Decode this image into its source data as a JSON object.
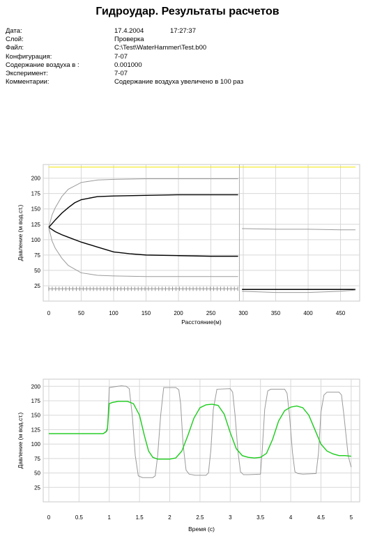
{
  "header": {
    "title": "Гидроудар. Результаты расчетов",
    "rows": [
      {
        "label": "Дата:",
        "value": "17.4.2004",
        "extra": "17:27:37"
      },
      {
        "label": "Слой:",
        "value": "Проверка"
      },
      {
        "label": "Файл:",
        "value": "C:\\Test\\WaterHammer\\Test.b00"
      },
      {
        "label": "Конфигурация:",
        "value": "7-07"
      },
      {
        "label": "Содержание воздуха в :",
        "value": "0.001000"
      },
      {
        "label": "Эксперимент:",
        "value": "7-07"
      },
      {
        "label": "Комментарии:",
        "value": "Содержание воздуха увеличено в 100 раз"
      }
    ]
  },
  "chart_data": [
    {
      "type": "line",
      "xlabel": "Расстояние(м)",
      "ylabel": "Давление (м вод.ст.)",
      "xlim": [
        0,
        450
      ],
      "ylim": [
        0,
        220
      ],
      "xticks": [
        0,
        50,
        100,
        150,
        200,
        250,
        300,
        350,
        400,
        450
      ],
      "yticks": [
        25,
        50,
        75,
        100,
        125,
        150,
        175,
        200
      ],
      "grid": true,
      "colors": {
        "yellow": "#f2e600",
        "black": "#000000",
        "gray": "#9a9a9a"
      },
      "series": [
        {
          "color": "yellow",
          "x": [
            0,
            473
          ],
          "y": [
            218,
            218
          ]
        },
        {
          "color": "gray",
          "x": [
            0,
            5,
            10,
            20,
            30,
            50,
            75,
            100,
            150,
            200,
            250,
            292
          ],
          "y": [
            120,
            140,
            152,
            170,
            182,
            193,
            197,
            198,
            199,
            199,
            199,
            199
          ]
        },
        {
          "color": "black",
          "x": [
            0,
            10,
            20,
            30,
            40,
            50,
            75,
            100,
            150,
            200,
            250,
            292
          ],
          "y": [
            120,
            132,
            143,
            152,
            160,
            165,
            170,
            171,
            172,
            173,
            173,
            173
          ]
        },
        {
          "color": "black",
          "x": [
            0,
            10,
            20,
            30,
            50,
            75,
            100,
            125,
            150,
            200,
            250,
            292
          ],
          "y": [
            120,
            113,
            108,
            104,
            96,
            88,
            80,
            77,
            75,
            74,
            73,
            73
          ]
        },
        {
          "color": "gray",
          "x": [
            0,
            5,
            10,
            20,
            30,
            50,
            75,
            100,
            150,
            200,
            250,
            292
          ],
          "y": [
            120,
            98,
            86,
            70,
            58,
            46,
            42,
            41,
            40,
            40,
            40,
            40
          ]
        },
        {
          "color": "gray",
          "x": [
            298,
            300,
            350,
            400,
            450,
            473
          ],
          "y": [
            118,
            118,
            117,
            117,
            116,
            116
          ]
        },
        {
          "color": "black",
          "x": [
            298,
            473
          ],
          "y": [
            19,
            19
          ]
        },
        {
          "color": "gray",
          "x": [
            298,
            350,
            400,
            450,
            473
          ],
          "y": [
            16,
            14,
            14,
            16,
            18
          ]
        },
        {
          "color": "gray",
          "x": [
            0,
            292
          ],
          "y": [
            20,
            20
          ]
        }
      ]
    },
    {
      "type": "line",
      "xlabel": "Время (с)",
      "ylabel": "Давление (м вод.ст.)",
      "xlim": [
        0,
        5
      ],
      "ylim": [
        0,
        210
      ],
      "xticks": [
        0,
        0.5,
        1,
        1.5,
        2,
        2.5,
        3,
        3.5,
        4,
        4.5,
        5
      ],
      "yticks": [
        25,
        50,
        75,
        100,
        125,
        150,
        175,
        200
      ],
      "grid": true,
      "colors": {
        "gray": "#9a9a9a",
        "green": "#19cc19"
      },
      "series": [
        {
          "color": "gray",
          "x": [
            0,
            0.9,
            0.95,
            0.97,
            1.0,
            1.2,
            1.28,
            1.33,
            1.38,
            1.43,
            1.48,
            1.55,
            1.72,
            1.76,
            1.8,
            1.85,
            1.9,
            2.1,
            2.15,
            2.18,
            2.22,
            2.27,
            2.32,
            2.42,
            2.6,
            2.64,
            2.68,
            2.72,
            2.78,
            3.0,
            3.04,
            3.08,
            3.13,
            3.17,
            3.22,
            3.3,
            3.5,
            3.53,
            3.57,
            3.62,
            3.67,
            3.9,
            3.94,
            3.98,
            4.03,
            4.07,
            4.12,
            4.2,
            4.42,
            4.46,
            4.5,
            4.55,
            4.6,
            4.8,
            4.84,
            4.88,
            4.95,
            5.0
          ],
          "y": [
            118,
            118,
            121,
            124,
            198,
            201,
            200,
            196,
            150,
            80,
            45,
            42,
            42,
            45,
            80,
            150,
            198,
            198,
            194,
            170,
            100,
            55,
            48,
            46,
            46,
            50,
            90,
            160,
            195,
            196,
            190,
            150,
            85,
            52,
            47,
            47,
            48,
            90,
            160,
            192,
            195,
            195,
            188,
            150,
            85,
            52,
            49,
            48,
            49,
            85,
            155,
            185,
            190,
            190,
            185,
            150,
            80,
            60
          ]
        },
        {
          "color": "green",
          "x": [
            0,
            0.9,
            0.95,
            0.97,
            1.0,
            1.05,
            1.15,
            1.3,
            1.4,
            1.5,
            1.58,
            1.65,
            1.72,
            1.8,
            1.9,
            2.0,
            2.1,
            2.2,
            2.3,
            2.4,
            2.5,
            2.6,
            2.7,
            2.8,
            2.9,
            3.0,
            3.1,
            3.2,
            3.3,
            3.4,
            3.5,
            3.6,
            3.7,
            3.8,
            3.9,
            4.0,
            4.1,
            4.2,
            4.3,
            4.4,
            4.5,
            4.6,
            4.7,
            4.8,
            4.9,
            5.0
          ],
          "y": [
            118,
            118,
            122,
            128,
            170,
            172,
            174,
            174,
            170,
            150,
            115,
            88,
            77,
            74,
            74,
            74,
            76,
            88,
            115,
            145,
            163,
            168,
            169,
            167,
            152,
            120,
            92,
            80,
            77,
            76,
            77,
            84,
            108,
            140,
            158,
            164,
            166,
            163,
            150,
            125,
            100,
            88,
            83,
            80,
            80,
            79
          ]
        }
      ]
    }
  ]
}
